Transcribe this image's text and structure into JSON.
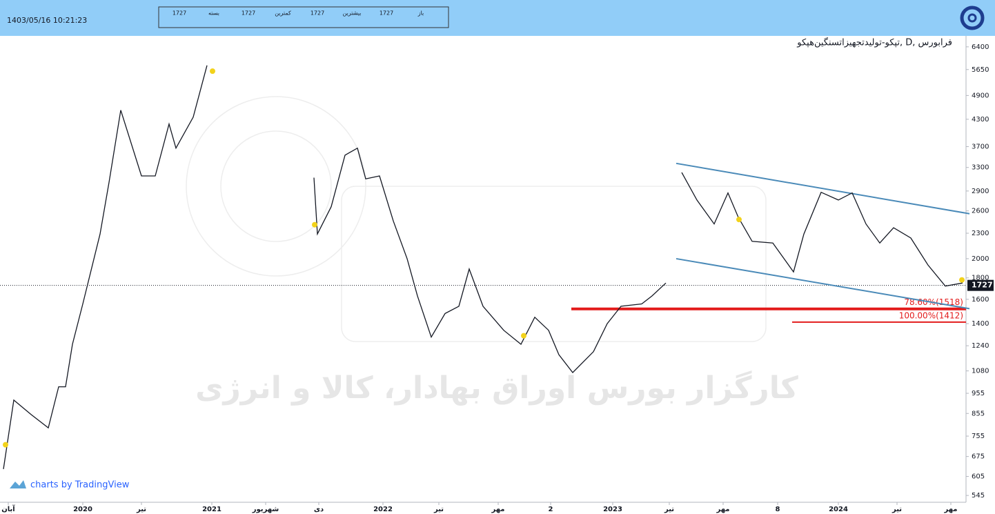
{
  "header": {
    "datetime": "1403/05/16 10:21:23",
    "info": [
      "1727",
      "بسته",
      "1727",
      "کمترین",
      "1727",
      "بیشترین",
      "1727",
      "باز"
    ]
  },
  "chart_data": {
    "type": "line",
    "title": "تپکو-تولیدتجهیزاتسنگین‌هپکو, D, فرابورس",
    "watermark": "کارگزار بورس اوراق بهادار، کالا و انرژی",
    "credit": "charts by TradingView",
    "log_scale": true,
    "xlim": [
      0,
      1400
    ],
    "xticks": [
      {
        "value": 12,
        "label": "آبان"
      },
      {
        "value": 120,
        "label": "2020"
      },
      {
        "value": 205,
        "label": "تیر"
      },
      {
        "value": 307,
        "label": "2021"
      },
      {
        "value": 385,
        "label": "شهریور"
      },
      {
        "value": 462,
        "label": "دی"
      },
      {
        "value": 555,
        "label": "2022"
      },
      {
        "value": 636,
        "label": "تیر"
      },
      {
        "value": 722,
        "label": "مهر"
      },
      {
        "value": 798,
        "label": "2"
      },
      {
        "value": 888,
        "label": "2023"
      },
      {
        "value": 970,
        "label": "تیر"
      },
      {
        "value": 1048,
        "label": "مهر"
      },
      {
        "value": 1127,
        "label": "8"
      },
      {
        "value": 1215,
        "label": "2024"
      },
      {
        "value": 1300,
        "label": "تیر"
      },
      {
        "value": 1378,
        "label": "مهر"
      }
    ],
    "ylim": [
      525,
      6720
    ],
    "yticks": [
      6400,
      5650,
      4900,
      4300,
      3700,
      3300,
      2900,
      2600,
      2300,
      2000,
      1800,
      1600,
      1400,
      1240,
      1080,
      955,
      855,
      755,
      675,
      605,
      545
    ],
    "series": [
      {
        "color": "#131722",
        "x": [
          5,
          20,
          45,
          70,
          85,
          95,
          105,
          120,
          145,
          158,
          175,
          205,
          225,
          245,
          255,
          280,
          300,
          380,
          455,
          460,
          480,
          500,
          518,
          530,
          550,
          570,
          590,
          605,
          625,
          645,
          665,
          680,
          700,
          730,
          755,
          775,
          795,
          810,
          830,
          860,
          880,
          900,
          930,
          945,
          965,
          975,
          988,
          1010,
          1035,
          1055,
          1070,
          1090,
          1120,
          1150,
          1165,
          1190,
          1215,
          1235,
          1255,
          1275,
          1295,
          1320,
          1345,
          1370,
          1395
        ],
        "values": [
          630,
          920,
          850,
          790,
          990,
          990,
          1250,
          1560,
          2290,
          3040,
          4520,
          3150,
          3150,
          4190,
          3670,
          4350,
          5780,
          null,
          3120,
          2290,
          2660,
          3530,
          3670,
          3100,
          3150,
          2460,
          2000,
          1630,
          1300,
          1480,
          1540,
          1890,
          1540,
          1350,
          1250,
          1450,
          1350,
          1180,
          1070,
          1200,
          1400,
          1540,
          1560,
          1630,
          1750,
          null,
          3210,
          2760,
          2420,
          2870,
          2510,
          2200,
          2180,
          1860,
          2290,
          2880,
          2760,
          2870,
          2420,
          2180,
          2370,
          2240,
          1930,
          1720,
          1750
        ]
      }
    ],
    "markers": {
      "color": "#f2d21b",
      "x": [
        8,
        308,
        456,
        759,
        1071,
        1394
      ],
      "values": [
        720,
        5600,
        2410,
        1310,
        2480,
        1780
      ]
    },
    "trendlines": [
      {
        "color": "#4a8ab8",
        "x": [
          980,
          1405
        ],
        "values": [
          3375,
          2560
        ]
      },
      {
        "color": "#4a8ab8",
        "x": [
          980,
          1405
        ],
        "values": [
          2000,
          1520
        ]
      }
    ],
    "levels": [
      {
        "label": "78.60%(1518)",
        "value": 1518,
        "x_start": 828,
        "color": "#e31b1b"
      },
      {
        "label": "100.00%(1412)",
        "value": 1412,
        "x_start": 1148,
        "color": "#e31b1b"
      }
    ],
    "last_price": 1727
  }
}
